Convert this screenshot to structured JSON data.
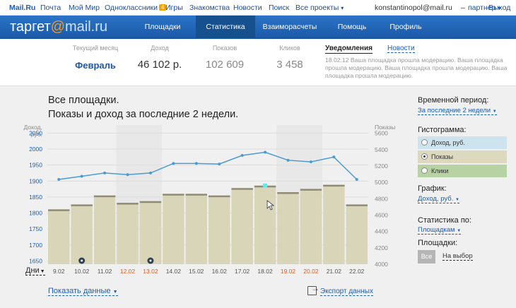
{
  "portal": {
    "logo": "Mail.Ru",
    "links": [
      "Почта",
      "Мой Мир",
      "Одноклассники",
      "Игры",
      "Знакомства",
      "Новости",
      "Поиск",
      "Все проекты"
    ],
    "ok_badge": "4",
    "user_email": "konstantinopol@mail.ru",
    "separator": "–",
    "partner_label": "партнер",
    "logout_label": "Выход"
  },
  "header": {
    "brand_word": "таргет",
    "brand_at": "@",
    "brand_domain": "mail.ru",
    "nav": [
      "Площадки",
      "Статистика",
      "Взаиморасчеты",
      "Помощь",
      "Профиль"
    ],
    "active_nav": "Статистика"
  },
  "summary": {
    "month": {
      "label": "Текущий месяц",
      "value": "Февраль"
    },
    "income": {
      "label": "Доход",
      "value": "46 102 р."
    },
    "shows": {
      "label": "Показов",
      "value": "102 609"
    },
    "clicks": {
      "label": "Кликов",
      "value": "3 458"
    }
  },
  "notifications": {
    "tab_active": "Уведомления",
    "tab_other": "Новости",
    "text": "18.02.12 Ваша площадка прошла модерацию. Ваша площадка прошла модерацию. Ваша площадка прошла модерацию. Ваша площадка прошла модерацию."
  },
  "main": {
    "title_line1": "Все площадки.",
    "title_line2": "Показы и доход за последние 2 недели.",
    "days_label": "Дни",
    "show_data_label": "Показать данные",
    "export_label": "Экспорт данных"
  },
  "chart_data": {
    "type": "bar",
    "ylabel_left": "Доход, руб.",
    "ylabel_right": "Показы",
    "categories": [
      "9.02",
      "10.02",
      "11.02",
      "12.02",
      "13.02",
      "14.02",
      "15.02",
      "16.02",
      "17.02",
      "18.02",
      "19.02",
      "20.02",
      "21.02",
      "22.02"
    ],
    "weekend_categories": [
      "12.02",
      "13.02",
      "19.02",
      "20.02"
    ],
    "left_ticks": [
      "2050",
      "2000",
      "1950",
      "1900",
      "1850",
      "1800",
      "1750",
      "1700",
      "1650"
    ],
    "right_ticks": [
      "5600",
      "5400",
      "5200",
      "5000",
      "4800",
      "4600",
      "4400",
      "4200",
      "4000"
    ],
    "ylim_left": [
      1640,
      2075
    ],
    "ylim_right": [
      4000,
      5700
    ],
    "marker_categories": [
      "10.02",
      "13.02"
    ],
    "series": [
      {
        "name": "Показы",
        "type": "bar",
        "axis": "right",
        "color": "#d8d5b9",
        "values": [
          4670,
          4730,
          4840,
          4750,
          4770,
          4860,
          4860,
          4840,
          4930,
          4960,
          4880,
          4920,
          4970,
          4730
        ]
      },
      {
        "name": "Доход, руб.",
        "type": "line",
        "axis": "left",
        "color": "#4b9bd2",
        "values": [
          1905,
          1915,
          1925,
          1920,
          1925,
          1955,
          1955,
          1953,
          1980,
          1990,
          1965,
          1960,
          1975,
          1905
        ]
      }
    ],
    "grid": true
  },
  "sidebar": {
    "period_label": "Временной период:",
    "period_value": "За последние 2 недели",
    "histogram_label": "Гистограмма:",
    "histogram_options": [
      {
        "label": "Доход, руб.",
        "color": "#cde4ee",
        "selected": false
      },
      {
        "label": "Показы",
        "color": "#dcd9bf",
        "selected": true
      },
      {
        "label": "Клики",
        "color": "#b7d3a3",
        "selected": false
      }
    ],
    "graph_label": "График:",
    "graph_value": "Доход, руб.",
    "stats_by_label": "Статистика по:",
    "stats_by_value": "Площадкам",
    "sites_label": "Площадки:",
    "sites_all": "Все",
    "sites_choose": "На выбор"
  }
}
